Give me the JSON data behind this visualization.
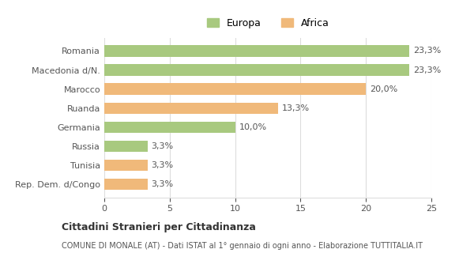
{
  "categories": [
    "Romania",
    "Macedonia d/N.",
    "Marocco",
    "Ruanda",
    "Germania",
    "Russia",
    "Tunisia",
    "Rep. Dem. d/Congo"
  ],
  "values": [
    23.3,
    23.3,
    20.0,
    13.3,
    10.0,
    3.3,
    3.3,
    3.3
  ],
  "colors": [
    "#a8c97f",
    "#a8c97f",
    "#f0b97a",
    "#f0b97a",
    "#a8c97f",
    "#a8c97f",
    "#f0b97a",
    "#f0b97a"
  ],
  "labels": [
    "23,3%",
    "23,3%",
    "20,0%",
    "13,3%",
    "10,0%",
    "3,3%",
    "3,3%",
    "3,3%"
  ],
  "europa_color": "#a8c97f",
  "africa_color": "#f0b97a",
  "xlim": [
    0,
    25
  ],
  "xticks": [
    0,
    5,
    10,
    15,
    20,
    25
  ],
  "title_bold": "Cittadini Stranieri per Cittadinanza",
  "subtitle": "COMUNE DI MONALE (AT) - Dati ISTAT al 1° gennaio di ogni anno - Elaborazione TUTTITALIA.IT",
  "background_color": "#ffffff",
  "grid_color": "#dddddd",
  "label_fontsize": 8,
  "tick_label_fontsize": 8,
  "legend_fontsize": 9
}
